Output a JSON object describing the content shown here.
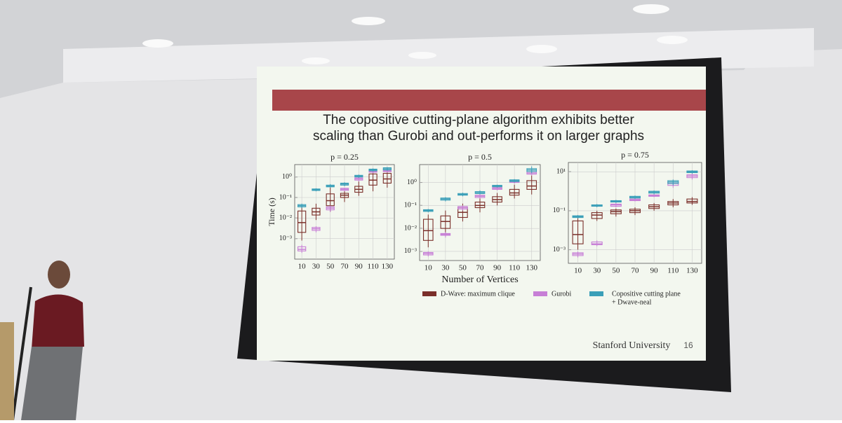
{
  "slide": {
    "title": [
      "The copositive cutting-plane algorithm exhibits better",
      "scaling than Gurobi and out-performs it on larger graphs"
    ],
    "footer": "Stanford University",
    "page_number": 16
  },
  "legend": [
    {
      "name": [
        "D-Wave: maximum clique"
      ],
      "color": "#7a2f2a"
    },
    {
      "name": [
        "Gurobi"
      ],
      "color": "#c77fd6"
    },
    {
      "name": [
        "Copositive cutting plane",
        "+ Dwave-neal"
      ],
      "color": "#3a9fb8"
    }
  ],
  "chart_data": [
    {
      "type": "box",
      "title": "p = 0.25",
      "ylabel": "Time (s)",
      "log_y": true,
      "grid": true,
      "categories": [
        10,
        30,
        50,
        70,
        90,
        110,
        130
      ],
      "ylim": [
        0.0001,
        4
      ],
      "yticks": [
        {
          "value": 0.001,
          "label": "10⁻³"
        },
        {
          "value": 0.01,
          "label": "10⁻²"
        },
        {
          "value": 0.1,
          "label": "10⁻¹"
        },
        {
          "value": 1,
          "label": "10⁰"
        }
      ],
      "series": [
        {
          "values": [
            [
              0.0008,
              0.002,
              0.006,
              0.022,
              0.04
            ],
            [
              0.008,
              0.014,
              0.02,
              0.03,
              0.05
            ],
            [
              0.02,
              0.04,
              0.07,
              0.15,
              0.3
            ],
            [
              0.06,
              0.1,
              0.13,
              0.16,
              0.25
            ],
            [
              0.12,
              0.18,
              0.25,
              0.35,
              0.6
            ],
            [
              0.2,
              0.4,
              0.7,
              1.4,
              2.5
            ],
            [
              0.3,
              0.5,
              0.8,
              1.5,
              2.5
            ]
          ]
        },
        {
          "values": [
            [
              0.0002,
              0.00025,
              0.0003,
              0.0004,
              0.0005
            ],
            [
              0.002,
              0.0025,
              0.003,
              0.0035,
              0.004
            ],
            [
              0.02,
              0.025,
              0.03,
              0.035,
              0.04
            ],
            [
              0.2,
              0.22,
              0.25,
              0.28,
              0.3
            ],
            [
              0.6,
              0.7,
              0.8,
              0.9,
              1
            ],
            [
              1.5,
              1.7,
              1.8,
              2,
              2.2
            ],
            [
              1.6,
              1.8,
              2,
              2.2,
              2.5
            ]
          ]
        },
        {
          "values": [
            [
              0.03,
              0.035,
              0.04,
              0.045,
              0.05
            ],
            [
              0.2,
              0.22,
              0.24,
              0.26,
              0.28
            ],
            [
              0.3,
              0.33,
              0.36,
              0.4,
              0.45
            ],
            [
              0.35,
              0.4,
              0.45,
              0.5,
              0.55
            ],
            [
              0.9,
              1,
              1.1,
              1.2,
              1.3
            ],
            [
              1.8,
              2,
              2.2,
              2.4,
              2.6
            ],
            [
              2,
              2.2,
              2.5,
              2.8,
              3
            ]
          ]
        }
      ]
    },
    {
      "type": "box",
      "title": "p = 0.5",
      "xlabel": "Number of Vertices",
      "log_y": true,
      "grid": true,
      "categories": [
        10,
        30,
        50,
        70,
        90,
        110,
        130
      ],
      "ylim": [
        0.0004,
        6
      ],
      "yticks": [
        {
          "value": 0.001,
          "label": "10⁻³"
        },
        {
          "value": 0.01,
          "label": "10⁻²"
        },
        {
          "value": 0.1,
          "label": "10⁻¹"
        },
        {
          "value": 1,
          "label": "10⁰"
        }
      ],
      "series": [
        {
          "values": [
            [
              0.0015,
              0.003,
              0.008,
              0.025,
              0.04
            ],
            [
              0.005,
              0.01,
              0.02,
              0.035,
              0.06
            ],
            [
              0.02,
              0.03,
              0.05,
              0.08,
              0.12
            ],
            [
              0.05,
              0.08,
              0.1,
              0.14,
              0.2
            ],
            [
              0.1,
              0.14,
              0.18,
              0.24,
              0.35
            ],
            [
              0.2,
              0.28,
              0.35,
              0.5,
              0.8
            ],
            [
              0.3,
              0.5,
              0.7,
              1.2,
              2
            ]
          ]
        },
        {
          "values": [
            [
              0.0006,
              0.0007,
              0.0008,
              0.0009,
              0.001
            ],
            [
              0.004,
              0.005,
              0.0055,
              0.006,
              0.007
            ],
            [
              0.06,
              0.07,
              0.08,
              0.09,
              0.1
            ],
            [
              0.2,
              0.22,
              0.25,
              0.28,
              0.3
            ],
            [
              0.45,
              0.5,
              0.55,
              0.6,
              0.65
            ],
            [
              0.9,
              1,
              1.1,
              1.2,
              1.3
            ],
            [
              2,
              2.3,
              2.6,
              3,
              3.5
            ]
          ]
        },
        {
          "values": [
            [
              0.05,
              0.055,
              0.06,
              0.065,
              0.07
            ],
            [
              0.15,
              0.17,
              0.19,
              0.21,
              0.23
            ],
            [
              0.25,
              0.28,
              0.3,
              0.33,
              0.36
            ],
            [
              0.3,
              0.33,
              0.36,
              0.4,
              0.45
            ],
            [
              0.6,
              0.65,
              0.7,
              0.75,
              0.8
            ],
            [
              1,
              1.1,
              1.2,
              1.3,
              1.4
            ],
            [
              2.5,
              3,
              3.5,
              4,
              5
            ]
          ]
        }
      ]
    },
    {
      "type": "box",
      "title": "p = 0.75",
      "log_y": true,
      "grid": true,
      "categories": [
        10,
        30,
        50,
        70,
        90,
        110,
        130
      ],
      "ylim": [
        0.0002,
        30
      ],
      "yticks": [
        {
          "value": 0.001,
          "label": "10⁻³"
        },
        {
          "value": 0.1,
          "label": "10⁻¹"
        },
        {
          "value": 10,
          "label": "10¹"
        }
      ],
      "series": [
        {
          "values": [
            [
              0.001,
              0.002,
              0.006,
              0.03,
              0.05
            ],
            [
              0.03,
              0.04,
              0.06,
              0.08,
              0.1
            ],
            [
              0.05,
              0.07,
              0.09,
              0.11,
              0.13
            ],
            [
              0.06,
              0.08,
              0.1,
              0.12,
              0.15
            ],
            [
              0.1,
              0.13,
              0.16,
              0.2,
              0.25
            ],
            [
              0.15,
              0.2,
              0.25,
              0.3,
              0.4
            ],
            [
              0.2,
              0.25,
              0.3,
              0.4,
              0.5
            ]
          ]
        },
        {
          "values": [
            [
              0.0004,
              0.0005,
              0.0006,
              0.0007,
              0.0008
            ],
            [
              0.0015,
              0.0018,
              0.002,
              0.0025,
              0.003
            ],
            [
              0.15,
              0.17,
              0.2,
              0.22,
              0.25
            ],
            [
              0.3,
              0.33,
              0.36,
              0.4,
              0.45
            ],
            [
              0.5,
              0.55,
              0.6,
              0.65,
              0.7
            ],
            [
              1.5,
              2,
              2.5,
              3,
              3.5
            ],
            [
              4,
              5,
              6,
              7,
              8
            ]
          ]
        },
        {
          "values": [
            [
              0.04,
              0.045,
              0.05,
              0.055,
              0.06
            ],
            [
              0.15,
              0.17,
              0.18,
              0.2,
              0.22
            ],
            [
              0.25,
              0.28,
              0.3,
              0.33,
              0.36
            ],
            [
              0.4,
              0.45,
              0.5,
              0.55,
              0.6
            ],
            [
              0.7,
              0.8,
              0.9,
              1,
              1.1
            ],
            [
              2,
              2.5,
              3,
              3.5,
              4
            ],
            [
              8,
              9,
              10,
              11,
              12
            ]
          ]
        }
      ]
    }
  ]
}
